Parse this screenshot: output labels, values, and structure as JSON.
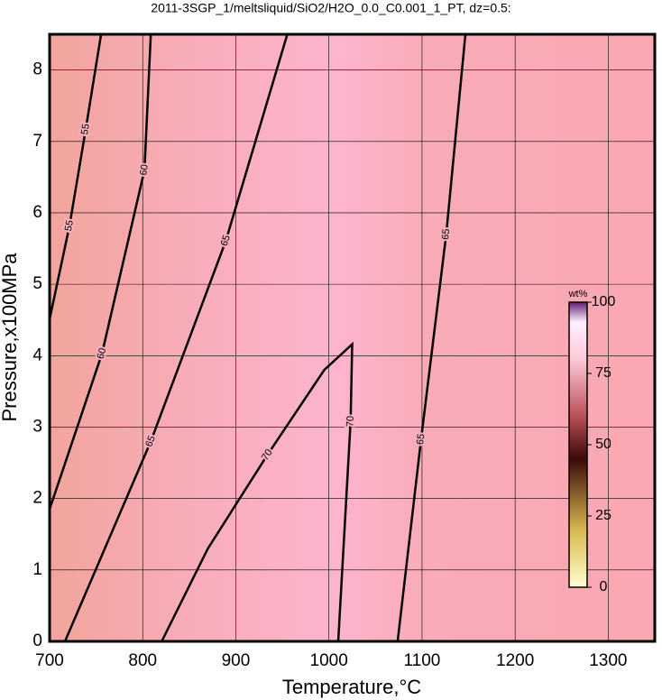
{
  "chart_data": {
    "type": "contour",
    "title": "2011-3SGP_1/meltsliquid/SiO2/H2O_0.0_C0.001_1_PT, dz=0.5:",
    "xlabel": "Temperature,°C",
    "ylabel": "Pressure,x100MPa",
    "xlim": [
      700,
      1350
    ],
    "xticks": [
      700,
      800,
      900,
      1000,
      1100,
      1200,
      1300
    ],
    "ylim": [
      0,
      8.5
    ],
    "yticks": [
      0,
      1,
      2,
      3,
      4,
      5,
      6,
      7,
      8
    ],
    "grid": true,
    "color": "#000000",
    "contours": [
      {
        "level": 55,
        "x": [
          700,
          721.4,
          738.8,
          755.3
        ],
        "y": [
          4.51,
          5.82,
          7.17,
          8.5
        ]
      },
      {
        "level": 60,
        "x": [
          700,
          756.3,
          801.9,
          808.7
        ],
        "y": [
          1.85,
          4.03,
          6.6,
          8.5
        ]
      },
      {
        "level": 65,
        "x": [
          716.5,
          808.7,
          889.3,
          955.3
        ],
        "y": [
          0,
          2.8,
          5.61,
          8.5
        ]
      },
      {
        "level": 70,
        "x": [
          820.4,
          870,
          933.9,
          995,
          1025,
          1023.3,
          1010
        ],
        "y": [
          0,
          1.3,
          2.61,
          3.8,
          4.16,
          3.08,
          0
        ]
      },
      {
        "level": 65,
        "x": [
          1073.8,
          1099,
          1126,
          1146.6
        ],
        "y": [
          0,
          2.83,
          5.7,
          8.5
        ]
      }
    ],
    "colorbar": {
      "label": "wt%",
      "lim": [
        0,
        100
      ],
      "ticks": [
        0,
        25,
        50,
        75,
        100
      ]
    }
  }
}
